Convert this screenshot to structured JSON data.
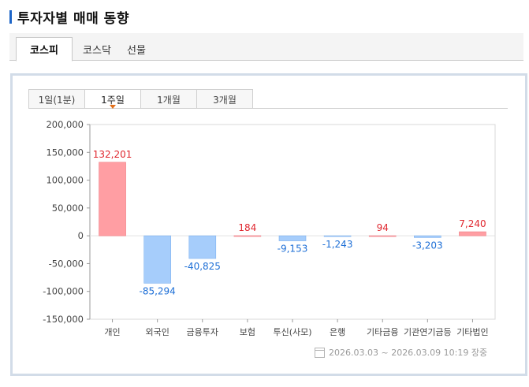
{
  "page": {
    "title": "투자자별 매매 동향"
  },
  "market_tabs": [
    {
      "label": "코스피",
      "active": true
    },
    {
      "label": "코스닥",
      "active": false
    },
    {
      "label": "선물",
      "active": false
    }
  ],
  "period_tabs": [
    {
      "label": "1일(1분)",
      "active": false
    },
    {
      "label": "1주일",
      "active": true
    },
    {
      "label": "1개월",
      "active": false
    },
    {
      "label": "3개월",
      "active": false
    }
  ],
  "colors": {
    "positive": "#ff9ea3",
    "negative": "#a6cdfb",
    "positive_text": "#e0262e",
    "negative_text": "#1e6fd6",
    "accent": "#1e66c8"
  },
  "chart_data": {
    "type": "bar",
    "categories": [
      "개인",
      "외국인",
      "금융투자",
      "보험",
      "투신(사모)",
      "은행",
      "기타금융",
      "기관연기금등",
      "기타법인"
    ],
    "values": [
      132201,
      -85294,
      -40825,
      184,
      -9153,
      -1243,
      94,
      -3203,
      7240
    ],
    "value_labels": [
      "132,201",
      "-85,294",
      "-40,825",
      "184",
      "-9,153",
      "-1,243",
      "94",
      "-3,203",
      "7,240"
    ],
    "ylim": [
      -150000,
      200000
    ],
    "yticks": [
      200000,
      150000,
      100000,
      50000,
      0,
      -50000,
      -100000,
      -150000
    ],
    "ytick_labels": [
      "200,000",
      "150,000",
      "100,000",
      "50,000",
      "0",
      "-50,000",
      "-100,000",
      "-150,000"
    ],
    "grid": false
  },
  "footer": {
    "timestamp": "2026.03.03 ~ 2026.03.09 10:19 장중"
  }
}
